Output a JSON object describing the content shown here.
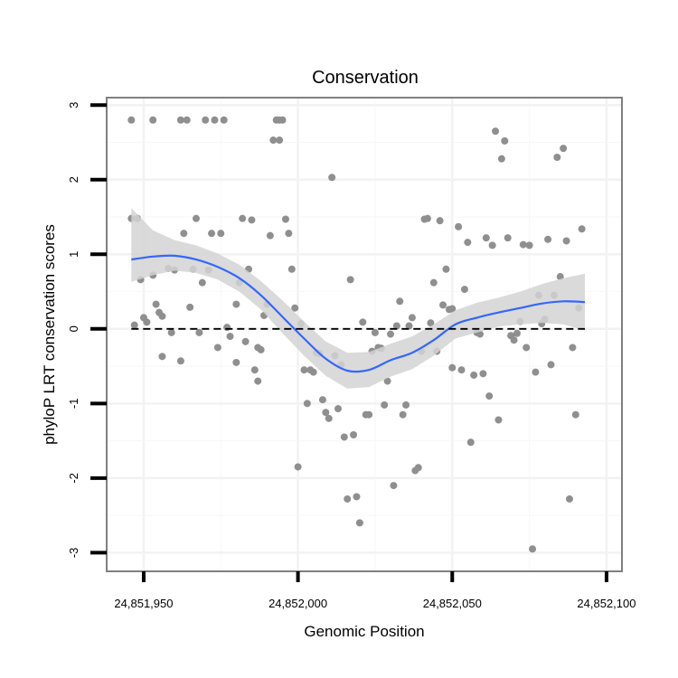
{
  "chart_data": {
    "type": "scatter",
    "title": "Conservation",
    "xlabel": "Genomic Position",
    "ylabel": "phyloP LRT conservation scores",
    "xlim": [
      24851938,
      24852105
    ],
    "ylim": [
      -3.25,
      3.1
    ],
    "x_ticks": [
      24851950,
      24852000,
      24852050,
      24852100
    ],
    "x_tick_labels": [
      "24,851,950",
      "24,852,000",
      "24,852,050",
      "24,852,100"
    ],
    "y_ticks": [
      3,
      2,
      1,
      0,
      -1,
      -2,
      -3
    ],
    "y_tick_labels": [
      "3",
      "2",
      "1",
      "0",
      "-1",
      "-2",
      "-3"
    ],
    "reference_line": {
      "y": 0,
      "style": "dashed"
    },
    "point_color": "#8f8f8f",
    "smooth_color": "#3366ff",
    "band_color": "#d4d4d4",
    "points": [
      [
        24851946,
        2.8
      ],
      [
        24851946,
        1.48
      ],
      [
        24851948,
        1.48
      ],
      [
        24851947,
        0.05
      ],
      [
        24851949,
        0.66
      ],
      [
        24851950,
        0.15
      ],
      [
        24851951,
        0.09
      ],
      [
        24851953,
        2.8
      ],
      [
        24851953,
        0.72
      ],
      [
        24851954,
        0.33
      ],
      [
        24851955,
        0.22
      ],
      [
        24851956,
        -0.37
      ],
      [
        24851956,
        0.17
      ],
      [
        24851958,
        0.81
      ],
      [
        24851959,
        -0.05
      ],
      [
        24851960,
        0.79
      ],
      [
        24851962,
        2.8
      ],
      [
        24851962,
        -0.43
      ],
      [
        24851963,
        1.28
      ],
      [
        24851964,
        2.8
      ],
      [
        24851965,
        0.29
      ],
      [
        24851966,
        0.8
      ],
      [
        24851967,
        1.48
      ],
      [
        24851968,
        -0.05
      ],
      [
        24851969,
        0.62
      ],
      [
        24851970,
        2.8
      ],
      [
        24851971,
        0.79
      ],
      [
        24851972,
        1.28
      ],
      [
        24851973,
        2.8
      ],
      [
        24851974,
        -0.25
      ],
      [
        24851975,
        1.28
      ],
      [
        24851976,
        2.8
      ],
      [
        24851977,
        0.02
      ],
      [
        24851978,
        -0.1
      ],
      [
        24851980,
        0.33
      ],
      [
        24851980,
        -0.45
      ],
      [
        24851981,
        0.62
      ],
      [
        24851982,
        1.48
      ],
      [
        24851983,
        -0.17
      ],
      [
        24851984,
        0.8
      ],
      [
        24851985,
        1.46
      ],
      [
        24851986,
        -0.55
      ],
      [
        24851987,
        -0.25
      ],
      [
        24851987,
        -0.7
      ],
      [
        24851988,
        -0.28
      ],
      [
        24851989,
        0.18
      ],
      [
        24851990,
        0.33
      ],
      [
        24851991,
        1.25
      ],
      [
        24851992,
        2.53
      ],
      [
        24851993,
        2.8
      ],
      [
        24851994,
        2.53
      ],
      [
        24851994,
        2.8
      ],
      [
        24851995,
        2.8
      ],
      [
        24851996,
        1.47
      ],
      [
        24851997,
        1.28
      ],
      [
        24851998,
        0.8
      ],
      [
        24851999,
        0.28
      ],
      [
        24852000,
        -1.85
      ],
      [
        24852001,
        0.07
      ],
      [
        24852002,
        -0.55
      ],
      [
        24852003,
        -1.0
      ],
      [
        24852004,
        -0.55
      ],
      [
        24852005,
        -0.58
      ],
      [
        24852006,
        -0.32
      ],
      [
        24852007,
        -0.33
      ],
      [
        24852008,
        -0.95
      ],
      [
        24852009,
        -1.12
      ],
      [
        24852010,
        -1.2
      ],
      [
        24852011,
        2.03
      ],
      [
        24852012,
        -0.36
      ],
      [
        24852013,
        -1.07
      ],
      [
        24852014,
        -0.48
      ],
      [
        24852015,
        -1.45
      ],
      [
        24852016,
        -2.28
      ],
      [
        24852017,
        0.66
      ],
      [
        24852018,
        -1.42
      ],
      [
        24852019,
        -2.25
      ],
      [
        24852020,
        -2.6
      ],
      [
        24852021,
        0.09
      ],
      [
        24852022,
        -1.15
      ],
      [
        24852023,
        -1.15
      ],
      [
        24852024,
        -0.3
      ],
      [
        24852025,
        -0.05
      ],
      [
        24852026,
        -0.25
      ],
      [
        24852027,
        -0.26
      ],
      [
        24852028,
        -1.02
      ],
      [
        24852029,
        -0.7
      ],
      [
        24852030,
        -0.07
      ],
      [
        24852031,
        -2.1
      ],
      [
        24852032,
        0.04
      ],
      [
        24852033,
        0.37
      ],
      [
        24852034,
        -1.15
      ],
      [
        24852035,
        -1.02
      ],
      [
        24852036,
        0.04
      ],
      [
        24852037,
        0.15
      ],
      [
        24852038,
        -1.9
      ],
      [
        24852039,
        -1.86
      ],
      [
        24852040,
        -0.3
      ],
      [
        24852041,
        1.47
      ],
      [
        24852042,
        1.48
      ],
      [
        24852043,
        0.08
      ],
      [
        24852044,
        0.62
      ],
      [
        24852045,
        -0.3
      ],
      [
        24852046,
        1.45
      ],
      [
        24852047,
        0.32
      ],
      [
        24852048,
        0.8
      ],
      [
        24852049,
        0.26
      ],
      [
        24852050,
        0.27
      ],
      [
        24852050,
        -0.52
      ],
      [
        24852052,
        1.37
      ],
      [
        24852053,
        -0.55
      ],
      [
        24852054,
        0.53
      ],
      [
        24852055,
        1.16
      ],
      [
        24852056,
        -1.52
      ],
      [
        24852057,
        -0.62
      ],
      [
        24852058,
        -0.05
      ],
      [
        24852059,
        -0.07
      ],
      [
        24852060,
        -0.6
      ],
      [
        24852061,
        1.22
      ],
      [
        24852062,
        -0.9
      ],
      [
        24852063,
        1.12
      ],
      [
        24852064,
        2.65
      ],
      [
        24852065,
        -1.22
      ],
      [
        24852066,
        2.28
      ],
      [
        24852067,
        2.52
      ],
      [
        24852068,
        1.22
      ],
      [
        24852069,
        -0.09
      ],
      [
        24852070,
        -0.15
      ],
      [
        24852071,
        -0.06
      ],
      [
        24852072,
        0.1
      ],
      [
        24852073,
        1.13
      ],
      [
        24852074,
        -0.25
      ],
      [
        24852075,
        1.12
      ],
      [
        24852076,
        -2.95
      ],
      [
        24852077,
        -0.58
      ],
      [
        24852078,
        0.45
      ],
      [
        24852079,
        0.07
      ],
      [
        24852080,
        0.13
      ],
      [
        24852081,
        1.2
      ],
      [
        24852082,
        -0.48
      ],
      [
        24852083,
        0.45
      ],
      [
        24852084,
        2.3
      ],
      [
        24852085,
        0.7
      ],
      [
        24852086,
        2.42
      ],
      [
        24852087,
        1.18
      ],
      [
        24852088,
        -2.28
      ],
      [
        24852089,
        -0.25
      ],
      [
        24852090,
        -1.15
      ],
      [
        24852091,
        0.28
      ],
      [
        24852092,
        1.34
      ]
    ],
    "smooth_line": {
      "x": [
        24851946,
        24851953,
        24851960,
        24851967,
        24851974,
        24851981,
        24851988,
        24851995,
        24852002,
        24852009,
        24852016,
        24852023,
        24852030,
        24852037,
        24852044,
        24852051,
        24852058,
        24852065,
        24852072,
        24852079,
        24852086,
        24852093
      ],
      "y": [
        0.93,
        0.97,
        0.98,
        0.93,
        0.83,
        0.68,
        0.45,
        0.16,
        -0.13,
        -0.4,
        -0.56,
        -0.55,
        -0.42,
        -0.32,
        -0.15,
        0.06,
        0.15,
        0.22,
        0.28,
        0.34,
        0.37,
        0.36
      ],
      "lower": [
        0.63,
        0.72,
        0.78,
        0.75,
        0.66,
        0.5,
        0.26,
        -0.06,
        -0.36,
        -0.63,
        -0.8,
        -0.78,
        -0.64,
        -0.54,
        -0.36,
        -0.13,
        -0.05,
        0.03,
        0.06,
        0.08,
        0.06,
        -0.02
      ],
      "upper": [
        1.62,
        1.32,
        1.19,
        1.12,
        1.01,
        0.86,
        0.64,
        0.38,
        0.1,
        -0.17,
        -0.32,
        -0.31,
        -0.2,
        -0.1,
        0.06,
        0.25,
        0.35,
        0.42,
        0.5,
        0.6,
        0.68,
        0.74
      ]
    }
  }
}
